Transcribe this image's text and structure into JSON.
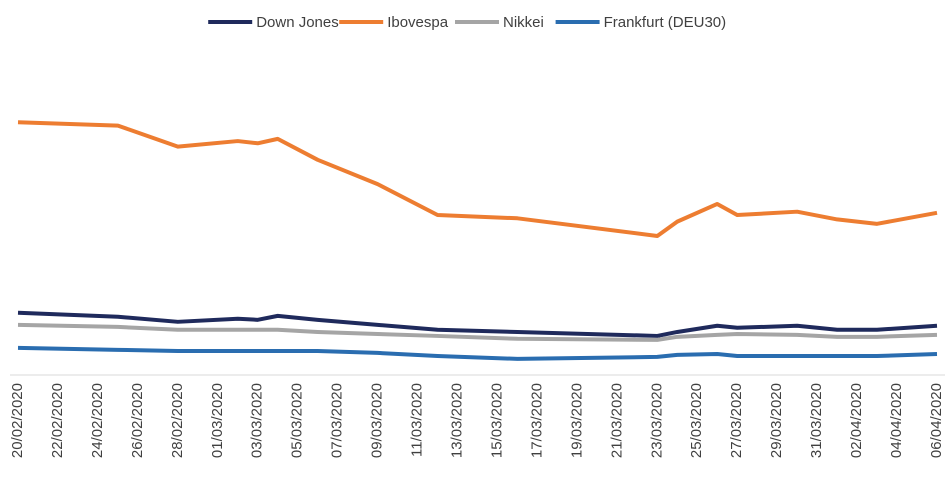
{
  "chart_data": {
    "type": "line",
    "x": [
      "20/02/2020",
      "25/02/2020",
      "28/02/2020",
      "02/03/2020",
      "03/03/2020",
      "04/03/2020",
      "06/03/2020",
      "09/03/2020",
      "12/03/2020",
      "16/03/2020",
      "23/03/2020",
      "24/03/2020",
      "26/03/2020",
      "27/03/2020",
      "30/03/2020",
      "01/04/2020",
      "03/04/2020",
      "06/04/2020"
    ],
    "series": [
      {
        "name": "Down Jones",
        "color": "#1f2a5c",
        "values": [
          28200,
          26400,
          24100,
          25500,
          25000,
          26800,
          25000,
          22700,
          20500,
          19500,
          17700,
          19500,
          22300,
          21400,
          22300,
          20500,
          20500,
          22300
        ]
      },
      {
        "name": "Ibovespa",
        "color": "#ed7d31",
        "values": [
          114500,
          113000,
          103500,
          106000,
          105000,
          107000,
          97500,
          86500,
          72500,
          71000,
          63000,
          69500,
          77500,
          72500,
          74000,
          70500,
          68500,
          73500
        ]
      },
      {
        "name": "Nikkei",
        "color": "#a5a5a5",
        "values": [
          22700,
          21800,
          20500,
          20500,
          20500,
          20500,
          19500,
          18600,
          17700,
          16400,
          15900,
          17300,
          18200,
          18600,
          18200,
          17300,
          17300,
          18200
        ]
      },
      {
        "name": "Frankfurt (DEU30)",
        "color": "#2a6db0",
        "values": [
          12300,
          11400,
          10900,
          10900,
          10900,
          10900,
          10900,
          10000,
          8600,
          7300,
          8200,
          9100,
          9500,
          8600,
          8600,
          8600,
          8600,
          9500
        ]
      }
    ],
    "xlim": [
      "20/02/2020",
      "06/04/2020"
    ],
    "xticks": [
      "20/02/2020",
      "22/02/2020",
      "24/02/2020",
      "26/02/2020",
      "28/02/2020",
      "01/03/2020",
      "03/03/2020",
      "05/03/2020",
      "07/03/2020",
      "09/03/2020",
      "11/03/2020",
      "13/03/2020",
      "15/03/2020",
      "17/03/2020",
      "19/03/2020",
      "21/03/2020",
      "23/03/2020",
      "25/03/2020",
      "27/03/2020",
      "29/03/2020",
      "31/03/2020",
      "02/04/2020",
      "04/04/2020",
      "06/04/2020"
    ],
    "ylim": [
      0,
      145000
    ],
    "legend": "top"
  }
}
